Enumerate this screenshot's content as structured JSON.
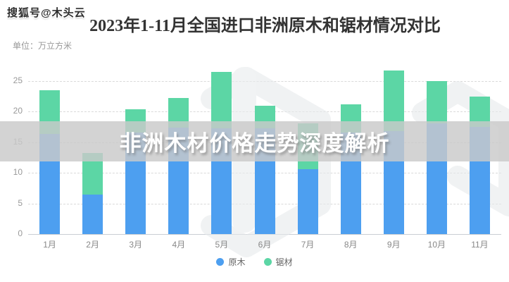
{
  "account_watermark": "搜狐号@木头云",
  "title": "2023年1-11月全国进口非洲原木和锯材情况对比",
  "unit_label": "单位：万立方米",
  "overlay_banner_text": "非洲木材价格走势深度解析",
  "colors": {
    "log_blue": "#4d9ff0",
    "sawn_green": "#5cd6a5",
    "banner_gray": "rgba(201,201,201,0.82)",
    "grid_gray": "#d9d9d9"
  },
  "chart_data": {
    "type": "bar",
    "stacked": true,
    "title": "2023年1-11月全国进口非洲原木和锯材情况对比",
    "unit": "万立方米",
    "categories": [
      "1月",
      "2月",
      "3月",
      "4月",
      "5月",
      "6月",
      "7月",
      "8月",
      "9月",
      "10月",
      "11月"
    ],
    "series": [
      {
        "name": "原木",
        "color": "#4d9ff0",
        "values": [
          16.3,
          6.4,
          16.5,
          17.3,
          17.2,
          17.2,
          10.6,
          16.6,
          16.8,
          18.0,
          17.5
        ]
      },
      {
        "name": "锯材",
        "color": "#5cd6a5",
        "values": [
          7.1,
          6.8,
          3.8,
          4.9,
          9.2,
          3.7,
          7.4,
          4.6,
          9.9,
          6.9,
          4.9
        ]
      }
    ],
    "totals": [
      23.4,
      13.2,
      20.3,
      22.2,
      26.4,
      20.9,
      18.0,
      21.2,
      26.7,
      24.9,
      22.4
    ],
    "ylim": [
      0,
      27.8
    ],
    "yticks": [
      0,
      5,
      10,
      15,
      20,
      25
    ],
    "grid": "horizontal dashed",
    "legend_position": "bottom"
  },
  "legend": [
    {
      "label": "原木",
      "color": "#4d9ff0"
    },
    {
      "label": "锯材",
      "color": "#5cd6a5"
    }
  ]
}
